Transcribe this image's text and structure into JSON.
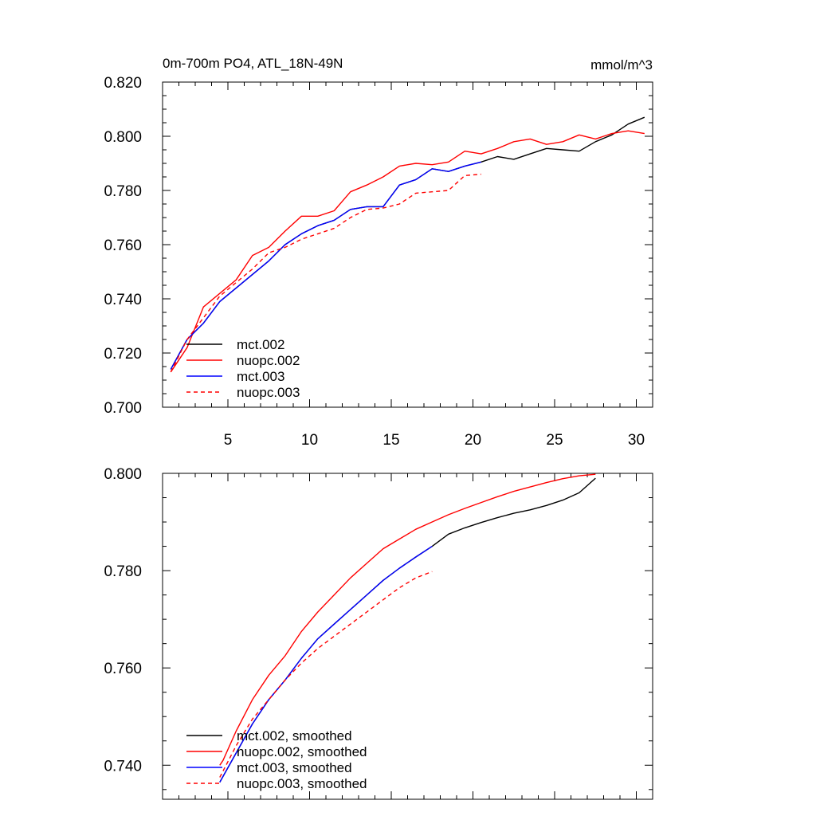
{
  "chart_data": [
    {
      "type": "line",
      "title_left": "0m-700m PO4, ATL_18N-49N",
      "title_right": "mmol/m^3",
      "xlabel": "",
      "ylabel": "",
      "xlim": [
        1,
        31
      ],
      "ylim": [
        0.7,
        0.82
      ],
      "x_ticks": [
        5,
        10,
        15,
        20,
        25,
        30
      ],
      "x_tick_labels": [
        "5",
        "10",
        "15",
        "20",
        "25",
        "30"
      ],
      "y_ticks": [
        0.7,
        0.72,
        0.74,
        0.76,
        0.78,
        0.8,
        0.82
      ],
      "y_tick_labels": [
        "0.700",
        "0.720",
        "0.740",
        "0.760",
        "0.780",
        "0.800",
        "0.820"
      ],
      "grid": false,
      "legend_position": "bottom-left",
      "series": [
        {
          "name": "mct.002",
          "color": "#000000",
          "dash": "solid",
          "x": [
            1.5,
            2.5,
            3.5,
            4.5,
            5.5,
            6.5,
            7.5,
            8.5,
            9.5,
            10.5,
            11.5,
            12.5,
            13.5,
            14.5,
            15.5,
            16.5,
            17.5,
            18.5,
            19.5,
            20.5,
            21.5,
            22.5,
            23.5,
            24.5,
            25.5,
            26.5,
            27.5,
            28.5,
            29.5,
            30.5
          ],
          "values": [
            0.714,
            0.725,
            0.731,
            0.739,
            0.744,
            0.749,
            0.754,
            0.76,
            0.764,
            0.767,
            0.769,
            0.773,
            0.774,
            0.774,
            0.782,
            0.784,
            0.788,
            0.787,
            0.789,
            0.7905,
            0.7925,
            0.7915,
            0.7935,
            0.7955,
            0.795,
            0.7945,
            0.798,
            0.8005,
            0.8045,
            0.807
          ]
        },
        {
          "name": "nuopc.002",
          "color": "#ff0000",
          "dash": "solid",
          "x": [
            1.5,
            2.5,
            3.5,
            4.5,
            5.5,
            6.5,
            7.5,
            8.5,
            9.5,
            10.5,
            11.5,
            12.5,
            13.5,
            14.5,
            15.5,
            16.5,
            17.5,
            18.5,
            19.5,
            20.5,
            21.5,
            22.5,
            23.5,
            24.5,
            25.5,
            26.5,
            27.5,
            28.5,
            29.5,
            30.5
          ],
          "values": [
            0.713,
            0.722,
            0.737,
            0.742,
            0.747,
            0.756,
            0.759,
            0.765,
            0.7705,
            0.7705,
            0.7725,
            0.7795,
            0.782,
            0.785,
            0.789,
            0.79,
            0.7895,
            0.7905,
            0.7945,
            0.7935,
            0.7955,
            0.798,
            0.799,
            0.797,
            0.798,
            0.8005,
            0.799,
            0.801,
            0.802,
            0.801
          ]
        },
        {
          "name": "mct.003",
          "color": "#0000ff",
          "dash": "solid",
          "x": [
            1.5,
            2.5,
            3.5,
            4.5,
            5.5,
            6.5,
            7.5,
            8.5,
            9.5,
            10.5,
            11.5,
            12.5,
            13.5,
            14.5,
            15.5,
            16.5,
            17.5,
            18.5,
            19.5,
            20.5
          ],
          "values": [
            0.714,
            0.725,
            0.731,
            0.739,
            0.744,
            0.749,
            0.754,
            0.76,
            0.764,
            0.767,
            0.769,
            0.773,
            0.774,
            0.774,
            0.782,
            0.784,
            0.788,
            0.787,
            0.789,
            0.7905
          ]
        },
        {
          "name": "nuopc.003",
          "color": "#ff0000",
          "dash": "dashed",
          "x": [
            1.5,
            2.5,
            3.5,
            4.5,
            5.5,
            6.5,
            7.5,
            8.5,
            9.5,
            10.5,
            11.5,
            12.5,
            13.5,
            14.5,
            15.5,
            16.5,
            17.5,
            18.5,
            19.5,
            20.5
          ],
          "values": [
            0.713,
            0.725,
            0.733,
            0.741,
            0.746,
            0.751,
            0.757,
            0.759,
            0.762,
            0.764,
            0.766,
            0.77,
            0.773,
            0.7735,
            0.775,
            0.779,
            0.7795,
            0.78,
            0.7855,
            0.786
          ]
        }
      ]
    },
    {
      "type": "line",
      "title_left": "",
      "title_right": "",
      "xlabel": "",
      "ylabel": "",
      "xlim": [
        1,
        31
      ],
      "ylim": [
        0.733,
        0.8
      ],
      "x_ticks": [
        5,
        10,
        15,
        20,
        25,
        30
      ],
      "x_tick_labels": [],
      "y_ticks": [
        0.74,
        0.76,
        0.78,
        0.8
      ],
      "y_tick_labels": [
        "0.740",
        "0.760",
        "0.780",
        "0.800"
      ],
      "grid": false,
      "legend_position": "bottom-left",
      "series": [
        {
          "name": "mct.002, smoothed",
          "color": "#000000",
          "dash": "solid",
          "x": [
            4.5,
            5.5,
            6.5,
            7.5,
            8.5,
            9.5,
            10.5,
            11.5,
            12.5,
            13.5,
            14.5,
            15.5,
            16.5,
            17.5,
            18.5,
            19.5,
            20.5,
            21.5,
            22.5,
            23.5,
            24.5,
            25.5,
            26.5,
            27.5
          ],
          "values": [
            0.7365,
            0.7425,
            0.7485,
            0.7535,
            0.7575,
            0.762,
            0.766,
            0.769,
            0.772,
            0.775,
            0.778,
            0.7805,
            0.7828,
            0.785,
            0.7875,
            0.7888,
            0.7899,
            0.7909,
            0.7918,
            0.7925,
            0.7934,
            0.7945,
            0.796,
            0.799
          ]
        },
        {
          "name": "nuopc.002, smoothed",
          "color": "#ff0000",
          "dash": "solid",
          "x": [
            4.5,
            4.7,
            5.5,
            6.5,
            7.5,
            8.5,
            9.5,
            10.5,
            11.5,
            12.5,
            13.5,
            14.5,
            15.5,
            16.5,
            17.5,
            18.5,
            19.5,
            20.5,
            21.5,
            22.5,
            23.5,
            24.5,
            25.5,
            26.5,
            27.5
          ],
          "values": [
            0.74,
            0.741,
            0.747,
            0.7535,
            0.7585,
            0.7625,
            0.7675,
            0.7715,
            0.775,
            0.7785,
            0.7815,
            0.7845,
            0.7865,
            0.7885,
            0.79,
            0.7915,
            0.7928,
            0.794,
            0.7952,
            0.7963,
            0.7972,
            0.7981,
            0.7989,
            0.7995,
            0.7998
          ]
        },
        {
          "name": "mct.003, smoothed",
          "color": "#0000ff",
          "dash": "solid",
          "x": [
            4.5,
            5.5,
            6.5,
            7.5,
            8.5,
            9.5,
            10.5,
            11.5,
            12.5,
            13.5,
            14.5,
            15.5,
            16.5,
            17.5
          ],
          "values": [
            0.7365,
            0.7425,
            0.7485,
            0.7535,
            0.7575,
            0.762,
            0.766,
            0.769,
            0.772,
            0.775,
            0.778,
            0.7805,
            0.7828,
            0.785
          ]
        },
        {
          "name": "nuopc.003, smoothed",
          "color": "#ff0000",
          "dash": "dashed",
          "x": [
            4.5,
            5.5,
            6.5,
            7.5,
            8.5,
            9.5,
            10.5,
            11.5,
            12.5,
            13.5,
            14.5,
            15.5,
            16.5,
            17.5
          ],
          "values": [
            0.7375,
            0.744,
            0.7495,
            0.7535,
            0.7575,
            0.761,
            0.764,
            0.7665,
            0.769,
            0.7715,
            0.774,
            0.7765,
            0.7785,
            0.7798
          ]
        }
      ]
    }
  ]
}
